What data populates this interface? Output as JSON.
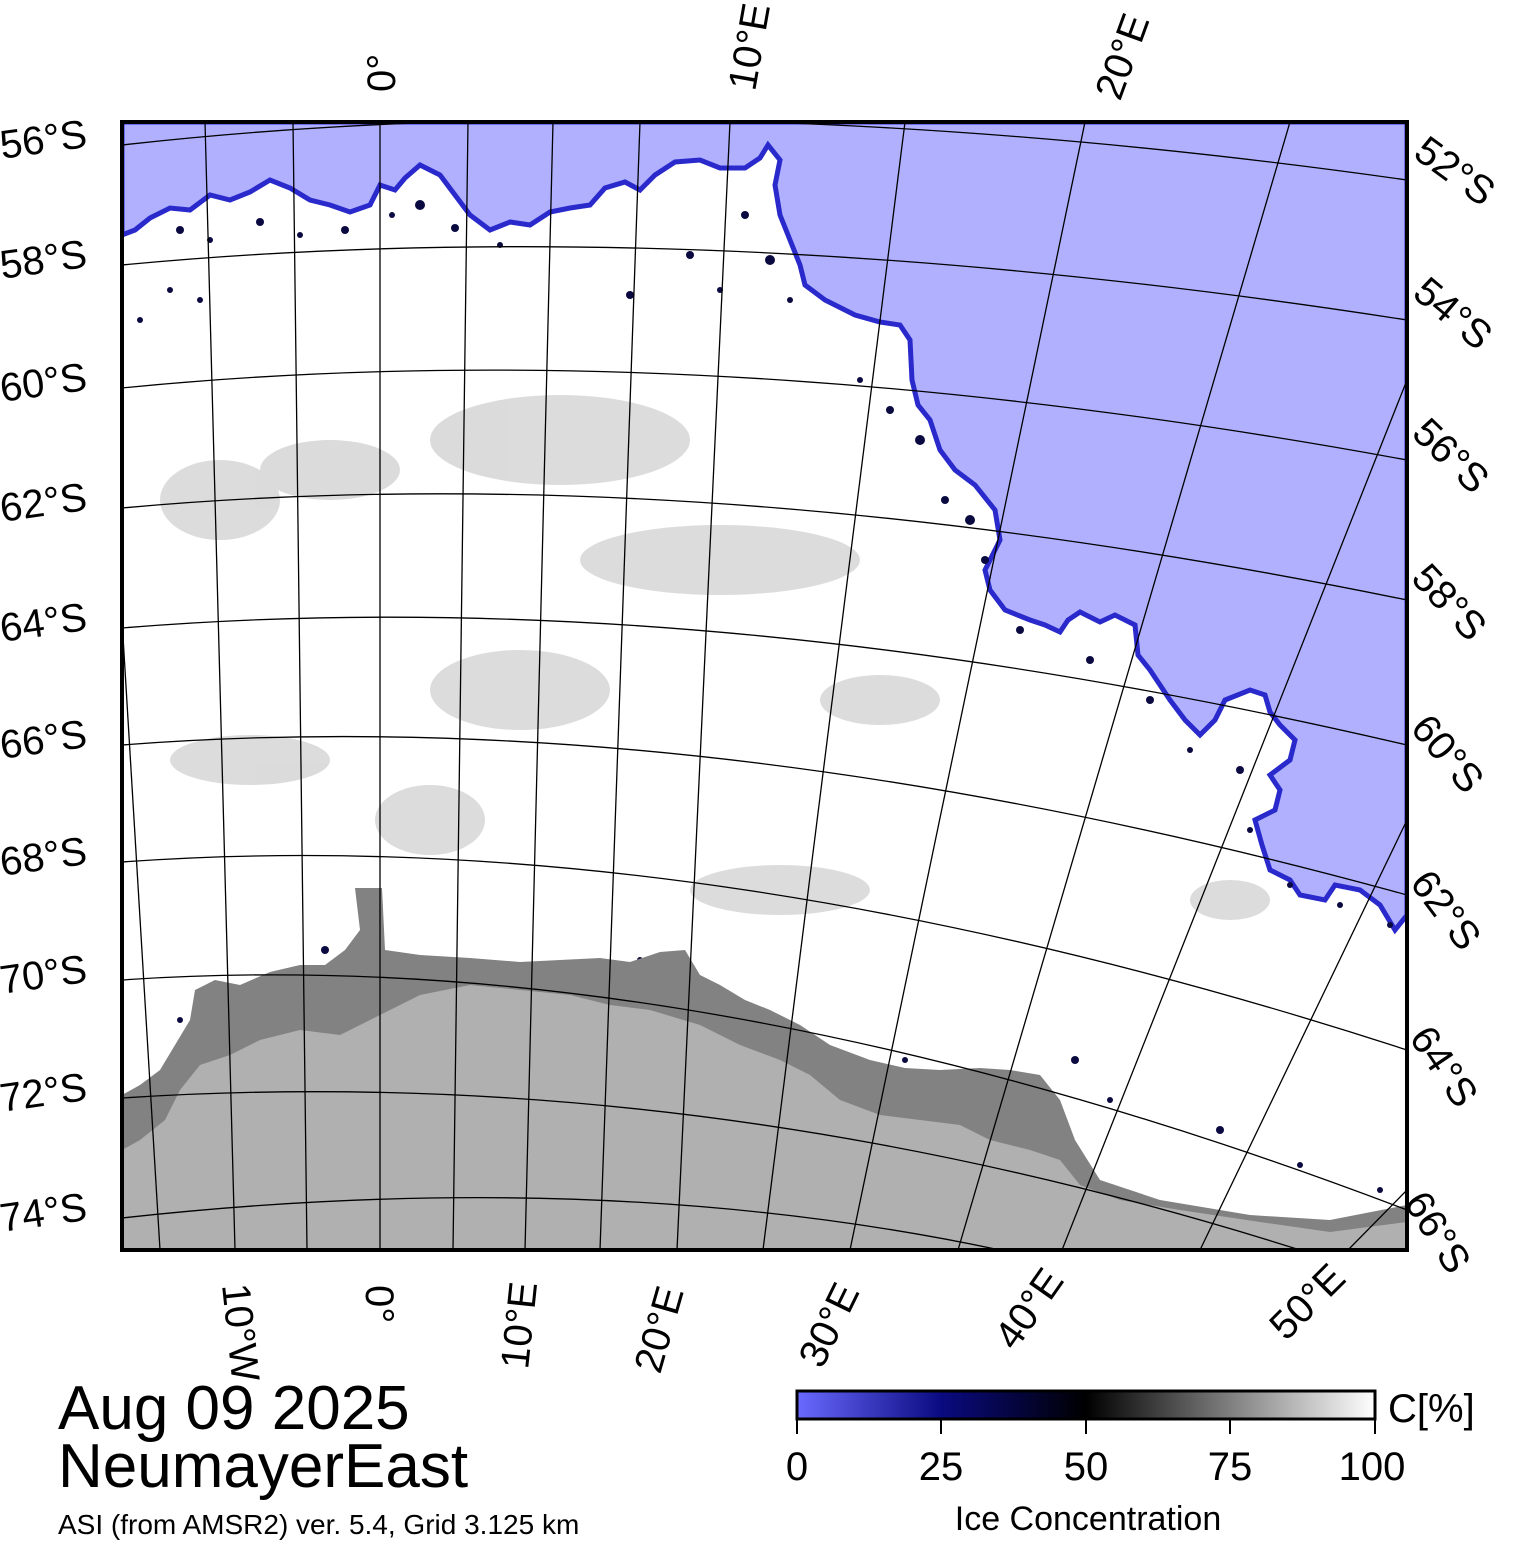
{
  "title": {
    "date": "Aug 09 2025",
    "region": "NeumayerEast",
    "source": "ASI (from AMSR2) ver. 5.4,  Grid 3.125 km"
  },
  "map": {
    "lat_labels_left": [
      "56°S",
      "58°S",
      "60°S",
      "62°S",
      "64°S",
      "66°S",
      "68°S",
      "70°S",
      "72°S",
      "74°S"
    ],
    "lat_labels_right": [
      "52°S",
      "54°S",
      "56°S",
      "58°S",
      "60°S",
      "62°S",
      "64°S",
      "66°S"
    ],
    "lon_labels_top": [
      "0°",
      "10°E",
      "20°E"
    ],
    "lon_labels_bottom": [
      "10°W",
      "0°",
      "10°E",
      "20°E",
      "30°E",
      "40°E",
      "50°E"
    ],
    "colors": {
      "open_water": "#b0b0ff",
      "ice_edge": "#2a2acc",
      "high_concentration_ice": "#ffffff",
      "ice_shelf": "#828282",
      "land": "#b0b0b0",
      "grid": "#000000"
    }
  },
  "colorbar": {
    "unit": "C[%]",
    "label": "Ice Concentration",
    "ticks": [
      "0",
      "25",
      "50",
      "75",
      "100"
    ],
    "range": [
      0,
      100
    ],
    "gradient_colors": [
      "#6a6aff",
      "#000080",
      "#000000",
      "#ffffff"
    ]
  }
}
